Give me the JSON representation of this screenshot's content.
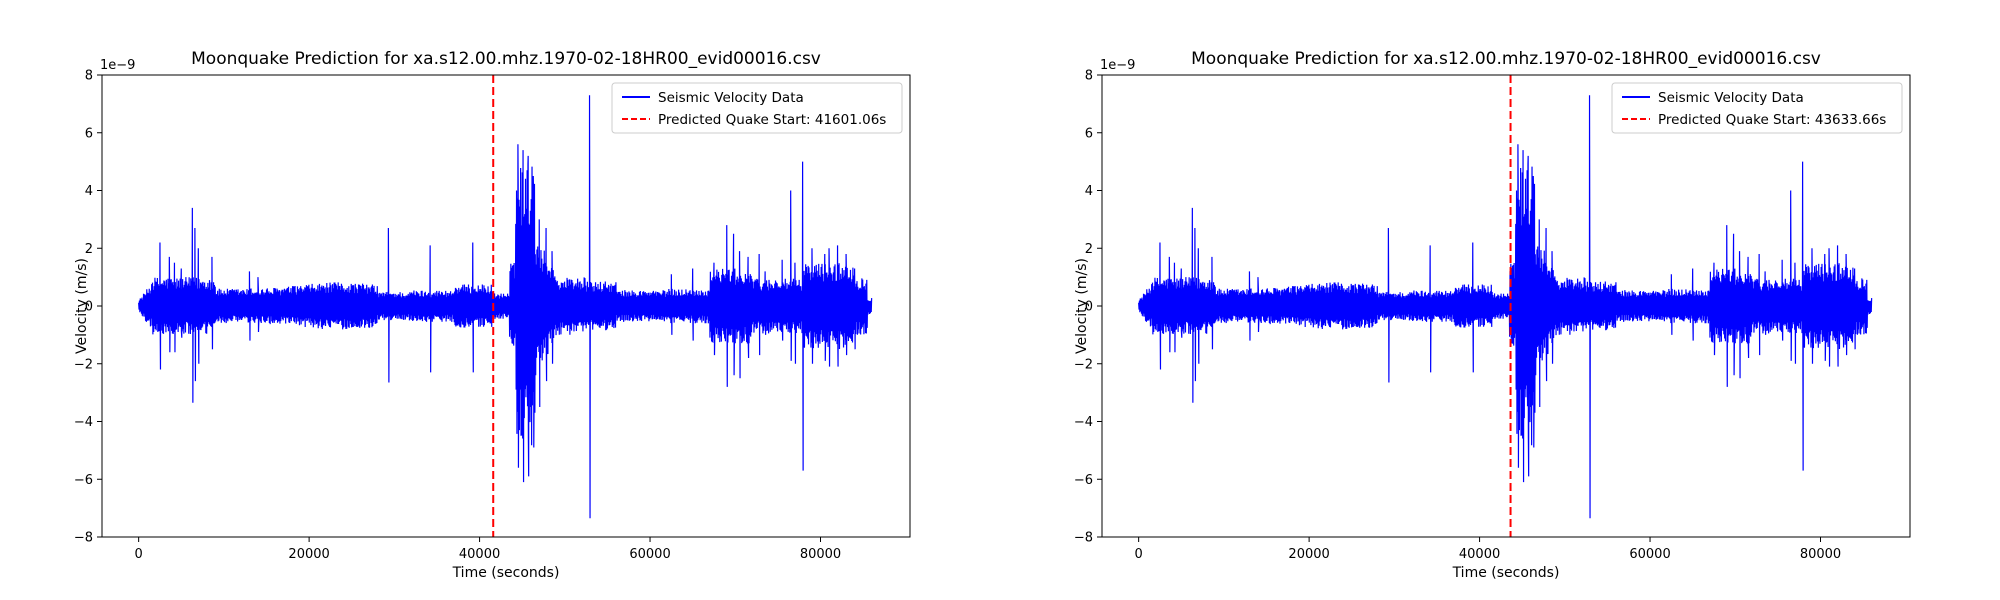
{
  "chart_data": [
    {
      "type": "line",
      "title": "Moonquake Prediction for xa.s12.00.mhz.1970-02-18HR00_evid00016.csv",
      "xlabel": "Time (seconds)",
      "ylabel": "Velocity (m/s)",
      "y_multiplier": "1e−9",
      "xlim": [
        -4300,
        90500
      ],
      "ylim": [
        -8,
        8
      ],
      "xticks": [
        0,
        20000,
        40000,
        60000,
        80000
      ],
      "yticks": [
        -8,
        -6,
        -4,
        -2,
        0,
        2,
        4,
        6,
        8
      ],
      "grid": false,
      "legend_position": "top-right",
      "series": [
        {
          "name": "Seismic Velocity Data",
          "color": "#0000ff",
          "style": "solid",
          "description_points": [
            [
              0,
              0
            ],
            [
              2500,
              2.2
            ],
            [
              4200,
              1.5
            ],
            [
              6300,
              3.4
            ],
            [
              6400,
              -3.3
            ],
            [
              8500,
              -1.5
            ],
            [
              13000,
              1.2
            ],
            [
              29300,
              2.7
            ],
            [
              29350,
              -2.6
            ],
            [
              34200,
              2.1
            ],
            [
              34250,
              -2.3
            ],
            [
              39200,
              2.2
            ],
            [
              39250,
              -2.3
            ],
            [
              44800,
              5.6
            ],
            [
              45500,
              -6.1
            ],
            [
              52900,
              7.3
            ],
            [
              53000,
              -7.4
            ],
            [
              69000,
              2.8
            ],
            [
              77900,
              5.0
            ],
            [
              78000,
              -5.7
            ],
            [
              86000,
              0
            ]
          ]
        },
        {
          "name": "Predicted Quake Start: 41601.06s",
          "color": "#ff0000",
          "style": "dashed",
          "x": 41601.06
        }
      ]
    },
    {
      "type": "line",
      "title": "Moonquake Prediction for xa.s12.00.mhz.1970-02-18HR00_evid00016.csv",
      "xlabel": "Time (seconds)",
      "ylabel": "Velocity (m/s)",
      "y_multiplier": "1e−9",
      "xlim": [
        -4300,
        90500
      ],
      "ylim": [
        -8,
        8
      ],
      "xticks": [
        0,
        20000,
        40000,
        60000,
        80000
      ],
      "yticks": [
        -8,
        -6,
        -4,
        -2,
        0,
        2,
        4,
        6,
        8
      ],
      "grid": false,
      "legend_position": "top-right",
      "series": [
        {
          "name": "Seismic Velocity Data",
          "color": "#0000ff",
          "style": "solid",
          "description_points": [
            [
              0,
              0
            ],
            [
              2500,
              2.2
            ],
            [
              4200,
              1.5
            ],
            [
              6300,
              3.4
            ],
            [
              6400,
              -3.3
            ],
            [
              8500,
              -1.5
            ],
            [
              13000,
              1.2
            ],
            [
              29300,
              2.7
            ],
            [
              29350,
              -2.6
            ],
            [
              34200,
              2.1
            ],
            [
              34250,
              -2.3
            ],
            [
              39200,
              2.2
            ],
            [
              39250,
              -2.3
            ],
            [
              44800,
              5.6
            ],
            [
              45500,
              -6.1
            ],
            [
              52900,
              7.3
            ],
            [
              53000,
              -7.4
            ],
            [
              69000,
              2.8
            ],
            [
              77900,
              5.0
            ],
            [
              78000,
              -5.7
            ],
            [
              86000,
              0
            ]
          ]
        },
        {
          "name": "Predicted Quake Start: 43633.66s",
          "color": "#ff0000",
          "style": "dashed",
          "x": 43633.66
        }
      ]
    }
  ]
}
